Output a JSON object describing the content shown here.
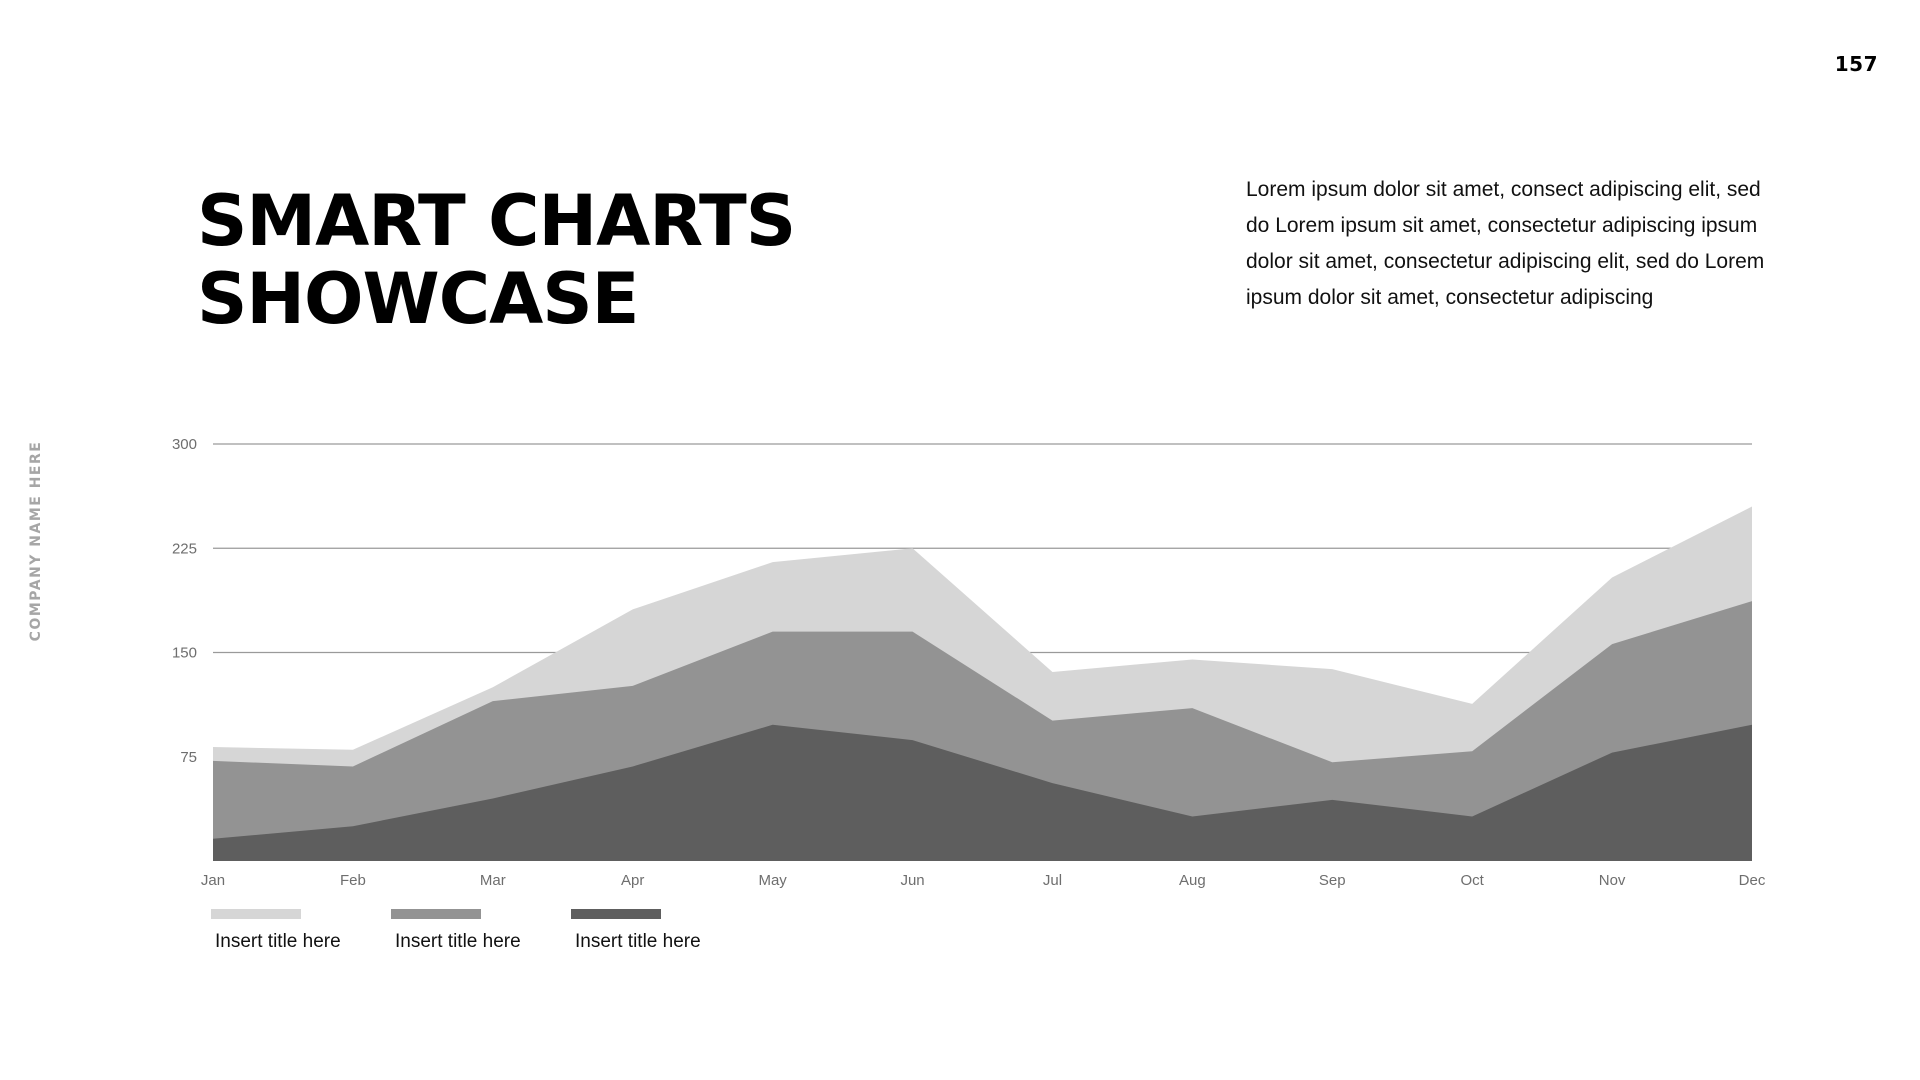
{
  "slide": {
    "page_number": "157",
    "side_label": "COMPANY NAME HERE",
    "title_lines": [
      "SMART CHARTS",
      "SHOWCASE"
    ],
    "description": "Lorem ipsum dolor sit amet, consect adipiscing elit, sed do Lorem ipsum sit amet, consectetur adipiscing ipsum dolor sit amet, consectetur adipiscing elit, sed do Lorem ipsum dolor sit amet, consectetur adipiscing"
  },
  "chart_data": {
    "type": "area",
    "stacked": true,
    "categories": [
      "Jan",
      "Feb",
      "Mar",
      "Apr",
      "May",
      "Jun",
      "Jul",
      "Aug",
      "Sep",
      "Oct",
      "Nov",
      "Dec"
    ],
    "ylim": [
      0,
      300
    ],
    "yticks": [
      75,
      150,
      225,
      300
    ],
    "grid": true,
    "legend_position": "bottom-left",
    "series": [
      {
        "name": "Insert title here",
        "color": "#d6d6d6",
        "values": [
          10,
          12,
          10,
          55,
          50,
          60,
          35,
          35,
          67,
          34,
          48,
          68
        ]
      },
      {
        "name": "Insert title here",
        "color": "#939393",
        "values": [
          56,
          43,
          70,
          58,
          67,
          78,
          45,
          78,
          27,
          47,
          78,
          89
        ]
      },
      {
        "name": "Insert title here",
        "color": "#5e5e5e",
        "values": [
          16,
          25,
          45,
          68,
          98,
          87,
          56,
          32,
          44,
          32,
          78,
          98
        ]
      }
    ]
  }
}
